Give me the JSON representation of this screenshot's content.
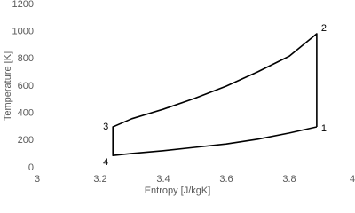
{
  "chart_data": {
    "type": "line",
    "x_label": "Entropy [J/kgK]",
    "y_label": "Temperature [K]",
    "xlim": [
      3,
      4
    ],
    "xticks": [
      3,
      3.2,
      3.4,
      3.6,
      3.8,
      4
    ],
    "ylim": [
      0,
      1200
    ],
    "yticks": [
      0,
      200,
      400,
      600,
      800,
      1000,
      1200
    ],
    "grid": false,
    "series": [
      {
        "color": "#000000",
        "x": [
          3.887,
          3.887,
          3.8,
          3.7,
          3.6,
          3.5,
          3.4,
          3.3,
          3.24,
          3.24,
          3.3,
          3.4,
          3.5,
          3.6,
          3.7,
          3.8,
          3.887
        ],
        "values": [
          300,
          985,
          820,
          705,
          600,
          510,
          430,
          360,
          300,
          90,
          105,
          125,
          150,
          175,
          210,
          255,
          300
        ],
        "point_labels": [
          "1",
          "2",
          null,
          null,
          null,
          null,
          null,
          null,
          "3",
          "4",
          null,
          null,
          null,
          null,
          null,
          null,
          null
        ]
      }
    ]
  }
}
